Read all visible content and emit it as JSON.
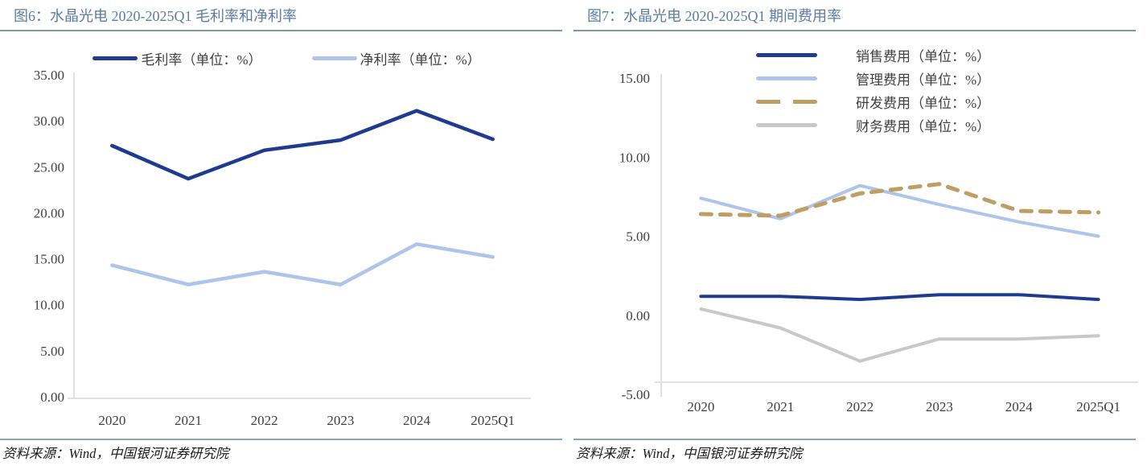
{
  "chart_data": [
    {
      "type": "line",
      "title": "图6：水晶光电 2020-2025Q1 毛利率和净利率",
      "categories": [
        "2020",
        "2021",
        "2022",
        "2023",
        "2024",
        "2025Q1"
      ],
      "series": [
        {
          "name": "毛利率（单位：%）",
          "values": [
            27.3,
            23.7,
            26.8,
            27.9,
            31.1,
            28.0
          ],
          "color": "#1F3B8F",
          "style": "solid",
          "width": 4.5
        },
        {
          "name": "净利率（单位：%）",
          "values": [
            14.3,
            12.2,
            13.6,
            12.2,
            16.6,
            15.2
          ],
          "color": "#AEC4E8",
          "style": "solid",
          "width": 4.5
        }
      ],
      "ylim": [
        0,
        35
      ],
      "ystep": 5,
      "grid": false,
      "legend_position": "top-center-horizontal",
      "axis_tick_format": "0.00",
      "source": "资料来源：Wind，中国银河证券研究院"
    },
    {
      "type": "line",
      "title": "图7：水晶光电 2020-2025Q1 期间费用率",
      "categories": [
        "2020",
        "2021",
        "2022",
        "2023",
        "2024",
        "2025Q1"
      ],
      "series": [
        {
          "name": "销售费用（单位：%）",
          "values": [
            1.2,
            1.2,
            1.0,
            1.3,
            1.3,
            1.0
          ],
          "color": "#1F3B8F",
          "style": "solid",
          "width": 4
        },
        {
          "name": "管理费用（单位：%）",
          "values": [
            7.4,
            6.1,
            8.2,
            7.0,
            5.9,
            5.0
          ],
          "color": "#AEC4E8",
          "style": "solid",
          "width": 4
        },
        {
          "name": "研发费用（单位：%）",
          "values": [
            6.4,
            6.3,
            7.7,
            8.3,
            6.6,
            6.5
          ],
          "color": "#BD9E63",
          "style": "dashed",
          "width": 5
        },
        {
          "name": "财务费用（单位：%）",
          "values": [
            0.4,
            -0.8,
            -2.9,
            -1.5,
            -1.5,
            -1.3
          ],
          "color": "#C8C8C8",
          "style": "solid",
          "width": 4
        }
      ],
      "ylim": [
        -5,
        15
      ],
      "ystep": 5,
      "grid": false,
      "legend_position": "top-right-vertical",
      "axis_tick_format": "0.00",
      "source": "资料来源：Wind，中国银河证券研究院"
    }
  ],
  "colors": {
    "title_text": "#5C7CA3",
    "title_rule": "#7E96B4",
    "axis_line": "#D9D9D9",
    "axis_text": "#404040",
    "footer_rule": "#8FA3BC",
    "source_text": "#1a1a1a"
  }
}
